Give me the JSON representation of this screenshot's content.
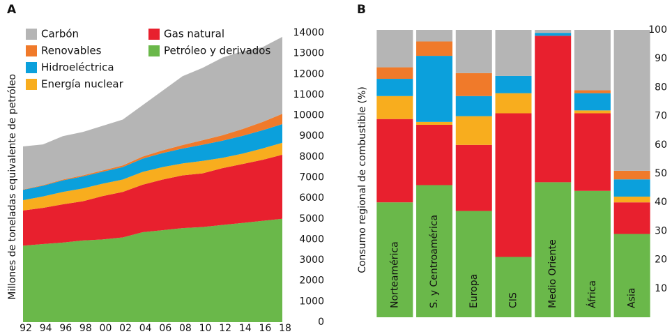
{
  "chart_data": [
    {
      "type": "stacked_area",
      "title": "A",
      "ylabel": "Millones de toneladas equivalente de petróleo",
      "x": [
        1992,
        1994,
        1996,
        1998,
        2000,
        2002,
        2004,
        2006,
        2008,
        2010,
        2012,
        2014,
        2016,
        2018
      ],
      "xlim": [
        1992,
        2018
      ],
      "xticks": [
        {
          "value": 1992,
          "label": "92"
        },
        {
          "value": 1994,
          "label": "94"
        },
        {
          "value": 1996,
          "label": "96"
        },
        {
          "value": 1998,
          "label": "98"
        },
        {
          "value": 2000,
          "label": "00"
        },
        {
          "value": 2002,
          "label": "02"
        },
        {
          "value": 2004,
          "label": "04"
        },
        {
          "value": 2006,
          "label": "06"
        },
        {
          "value": 2008,
          "label": "08"
        },
        {
          "value": 2010,
          "label": "10"
        },
        {
          "value": 2012,
          "label": "12"
        },
        {
          "value": 2014,
          "label": "14"
        },
        {
          "value": 2016,
          "label": "16"
        },
        {
          "value": 2018,
          "label": "18"
        }
      ],
      "ylim": [
        0,
        14000
      ],
      "yticks": [
        0,
        1000,
        2000,
        3000,
        4000,
        5000,
        6000,
        7000,
        8000,
        9000,
        10000,
        11000,
        12000,
        13000,
        14000
      ],
      "series": [
        {
          "name": "Carbón",
          "color": "#b5b5b5",
          "values": [
            2080,
            1970,
            2100,
            2100,
            2160,
            2220,
            2490,
            2890,
            3330,
            3500,
            3760,
            3760,
            3620,
            3720
          ]
        },
        {
          "name": "Renovables",
          "color": "#f07a2a",
          "values": [
            20,
            30,
            40,
            50,
            60,
            80,
            100,
            130,
            170,
            220,
            260,
            330,
            400,
            500
          ]
        },
        {
          "name": "Hidroeléctrica",
          "color": "#0ba0dc",
          "values": [
            500,
            520,
            560,
            580,
            580,
            600,
            640,
            680,
            720,
            780,
            830,
            860,
            880,
            900
          ]
        },
        {
          "name": "Energía nuclear",
          "color": "#f8ad1e",
          "values": [
            500,
            550,
            600,
            620,
            600,
            600,
            620,
            600,
            580,
            600,
            500,
            500,
            550,
            580
          ]
        },
        {
          "name": "Gas natural",
          "color": "#e8202e",
          "values": [
            1700,
            1750,
            1850,
            1900,
            2100,
            2200,
            2300,
            2450,
            2550,
            2600,
            2750,
            2850,
            2950,
            3100
          ]
        },
        {
          "name": "Petróleo y derivados",
          "color": "#6ab84a",
          "values": [
            3700,
            3780,
            3850,
            3950,
            4000,
            4100,
            4350,
            4450,
            4550,
            4600,
            4700,
            4800,
            4900,
            5000
          ]
        }
      ]
    },
    {
      "type": "stacked_bar",
      "title": "B",
      "ylabel": "Consumo regional de combustible (%)",
      "categories": [
        "Norteamérica",
        "S. y Centroamérica",
        "Europa",
        "CIS",
        "Medio Oriente",
        "África",
        "Asia"
      ],
      "ylim": [
        0,
        100
      ],
      "yticks": [
        10,
        20,
        30,
        40,
        50,
        60,
        70,
        80,
        90,
        100
      ],
      "series": [
        {
          "color": "#b5b5b5",
          "values": [
            13,
            4,
            15,
            16,
            1,
            21,
            49
          ]
        },
        {
          "color": "#f07a2a",
          "values": [
            4,
            5,
            8,
            0,
            0,
            1,
            3
          ]
        },
        {
          "color": "#0ba0dc",
          "values": [
            6,
            23,
            7,
            6,
            1,
            6,
            6
          ]
        },
        {
          "color": "#f8ad1e",
          "values": [
            8,
            1,
            10,
            7,
            0,
            1,
            2
          ]
        },
        {
          "color": "#e8202e",
          "values": [
            29,
            21,
            23,
            50,
            51,
            27,
            11
          ]
        },
        {
          "color": "#6ab84a",
          "values": [
            40,
            46,
            37,
            21,
            47,
            44,
            29
          ]
        }
      ]
    }
  ]
}
